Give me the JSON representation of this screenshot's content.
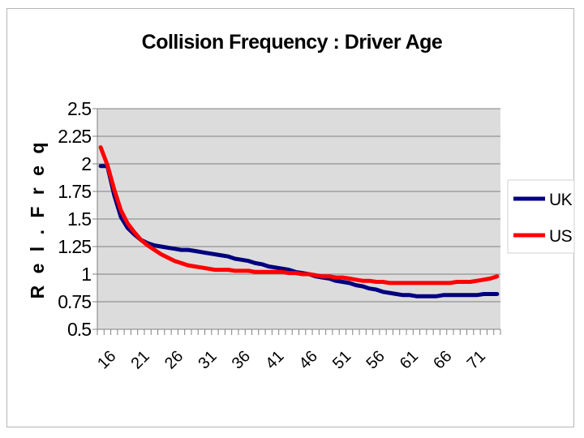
{
  "chart_data": {
    "type": "line",
    "title": "Collision Frequency : Driver Age",
    "xlabel": "",
    "ylabel": "R e l .  F r e q",
    "ylim": [
      0.5,
      2.5
    ],
    "yticks": [
      "0.5",
      "0.75",
      "1",
      "1.25",
      "1.5",
      "1.75",
      "2",
      "2.25",
      "2.5"
    ],
    "xticks": [
      "16",
      "21",
      "26",
      "31",
      "36",
      "41",
      "46",
      "51",
      "56",
      "61",
      "66",
      "71"
    ],
    "x": [
      16,
      17,
      18,
      19,
      20,
      21,
      22,
      23,
      24,
      25,
      26,
      27,
      28,
      29,
      30,
      31,
      32,
      33,
      34,
      35,
      36,
      37,
      38,
      39,
      40,
      41,
      42,
      43,
      44,
      45,
      46,
      47,
      48,
      49,
      50,
      51,
      52,
      53,
      54,
      55,
      56,
      57,
      58,
      59,
      60,
      61,
      62,
      63,
      64,
      65,
      66,
      67,
      68,
      69,
      70,
      71,
      72,
      73,
      74,
      75
    ],
    "grid": true,
    "legend": "right",
    "background": "#dcdcdc",
    "series": [
      {
        "name": "UK",
        "color": "#00007f",
        "values": [
          1.98,
          1.98,
          1.72,
          1.52,
          1.42,
          1.36,
          1.31,
          1.28,
          1.26,
          1.25,
          1.24,
          1.23,
          1.22,
          1.22,
          1.21,
          1.2,
          1.19,
          1.18,
          1.17,
          1.16,
          1.14,
          1.13,
          1.12,
          1.1,
          1.09,
          1.07,
          1.06,
          1.05,
          1.04,
          1.02,
          1.01,
          1.0,
          0.98,
          0.97,
          0.96,
          0.94,
          0.93,
          0.92,
          0.9,
          0.89,
          0.87,
          0.86,
          0.84,
          0.83,
          0.82,
          0.81,
          0.81,
          0.8,
          0.8,
          0.8,
          0.8,
          0.81,
          0.81,
          0.81,
          0.81,
          0.81,
          0.81,
          0.82,
          0.82,
          0.82
        ]
      },
      {
        "name": "US",
        "color": "#ff0000",
        "values": [
          2.15,
          1.99,
          1.77,
          1.58,
          1.46,
          1.38,
          1.31,
          1.26,
          1.22,
          1.18,
          1.15,
          1.12,
          1.1,
          1.08,
          1.07,
          1.06,
          1.05,
          1.04,
          1.04,
          1.04,
          1.03,
          1.03,
          1.03,
          1.02,
          1.02,
          1.02,
          1.02,
          1.02,
          1.01,
          1.01,
          1.0,
          1.0,
          0.99,
          0.98,
          0.98,
          0.97,
          0.97,
          0.96,
          0.95,
          0.94,
          0.94,
          0.93,
          0.93,
          0.92,
          0.92,
          0.92,
          0.92,
          0.92,
          0.92,
          0.92,
          0.92,
          0.92,
          0.92,
          0.93,
          0.93,
          0.93,
          0.94,
          0.95,
          0.96,
          0.98
        ]
      }
    ]
  }
}
